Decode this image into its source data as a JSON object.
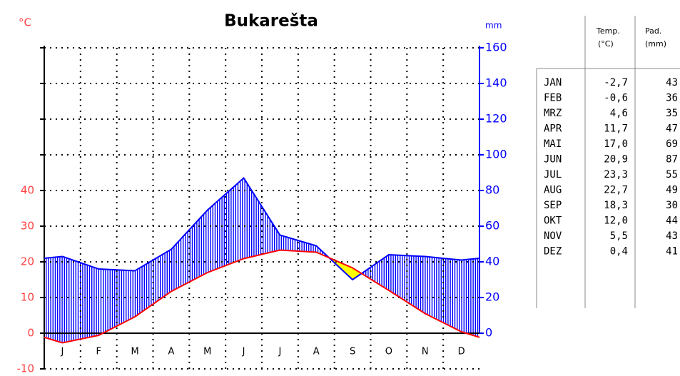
{
  "chart_data": {
    "type": "climate",
    "title": "Bukarešta",
    "y_label": "°C",
    "y2_label": "mm",
    "categories": [
      "J",
      "F",
      "M",
      "A",
      "M",
      "J",
      "J",
      "A",
      "S",
      "O",
      "N",
      "D"
    ],
    "series": [
      {
        "name": "Temp.",
        "color": "#ff0000",
        "values": [
          -2.7,
          -0.6,
          4.6,
          11.7,
          17.0,
          20.9,
          23.3,
          22.7,
          18.3,
          12.0,
          5.5,
          0.4
        ],
        "value_labels": [
          "-2,7",
          "-0,6",
          "4,6",
          "11,7",
          "17,0",
          "20,9",
          "23,3",
          "22,7",
          "18,3",
          "12,0",
          "5,5",
          "0,4"
        ]
      },
      {
        "name": "Pad.",
        "color": "#0000ff",
        "axis": "y2",
        "values": [
          43,
          36,
          35,
          47,
          69,
          87,
          55,
          49,
          30,
          44,
          43,
          41
        ]
      }
    ],
    "dry_color": "#ffff00",
    "ylim": [
      -10,
      80
    ],
    "yticks": [
      -10,
      0,
      10,
      20,
      30,
      40
    ],
    "y2lim": [
      -20,
      160
    ],
    "y2ticks": [
      0,
      20,
      40,
      60,
      80,
      100,
      120,
      140,
      160
    ],
    "grid": true
  },
  "table": {
    "headers": [
      [
        "Temp.",
        "(°C)"
      ],
      [
        "Pad.",
        "(mm)"
      ]
    ],
    "months": [
      "JAN",
      "FEB",
      "MRZ",
      "APR",
      "MAI",
      "JUN",
      "JUL",
      "AUG",
      "SEP",
      "OKT",
      "NOV",
      "DEZ"
    ]
  }
}
